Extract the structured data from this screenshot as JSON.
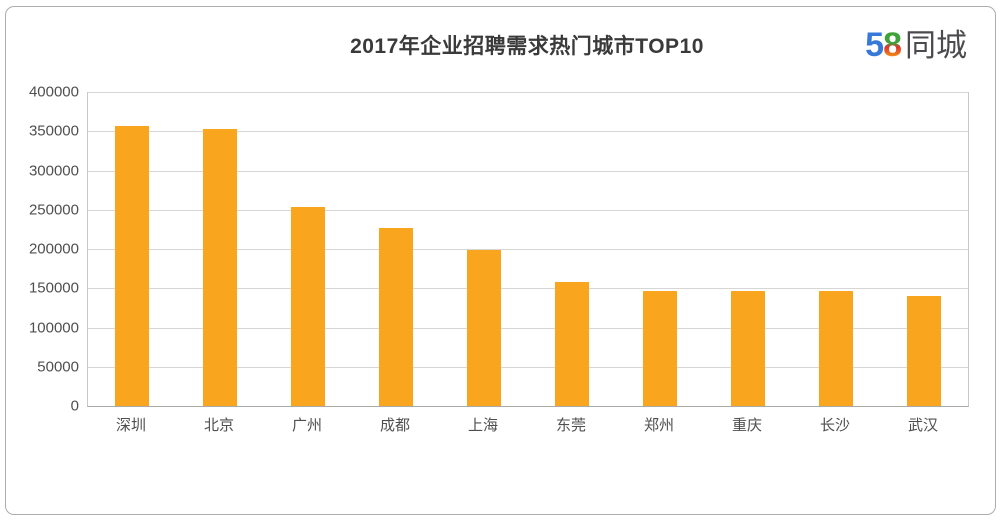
{
  "title": "2017年企业招聘需求热门城市TOP10",
  "logo": {
    "five": "5",
    "eight": "8",
    "suffix": "同城"
  },
  "chart_data": {
    "type": "bar",
    "title": "2017年企业招聘需求热门城市TOP10",
    "categories": [
      "深圳",
      "北京",
      "广州",
      "成都",
      "上海",
      "东莞",
      "郑州",
      "重庆",
      "长沙",
      "武汉"
    ],
    "values": [
      357000,
      353000,
      254000,
      227000,
      199000,
      158000,
      147000,
      146000,
      146000,
      140000
    ],
    "xlabel": "",
    "ylabel": "",
    "ylim": [
      0,
      400000
    ],
    "ytick_step": 50000,
    "yticks": [
      0,
      50000,
      100000,
      150000,
      200000,
      250000,
      300000,
      350000,
      400000
    ],
    "grid": true,
    "legend_position": "none",
    "bar_color": "#f9a51d"
  },
  "colors": {
    "bar": "#f9a51d",
    "gridline": "#d6d6d6",
    "plot_border": "#c9c9c9",
    "axis_line": "#a9a9a9",
    "tick_text": "#4f4f4f",
    "title_text": "#3a3a3a",
    "frame_border": "#acacac",
    "logo_blue": "#3679d9",
    "logo_green": "#3fa33a",
    "logo_orange": "#f08617",
    "logo_gray": "#4b4b4f"
  }
}
